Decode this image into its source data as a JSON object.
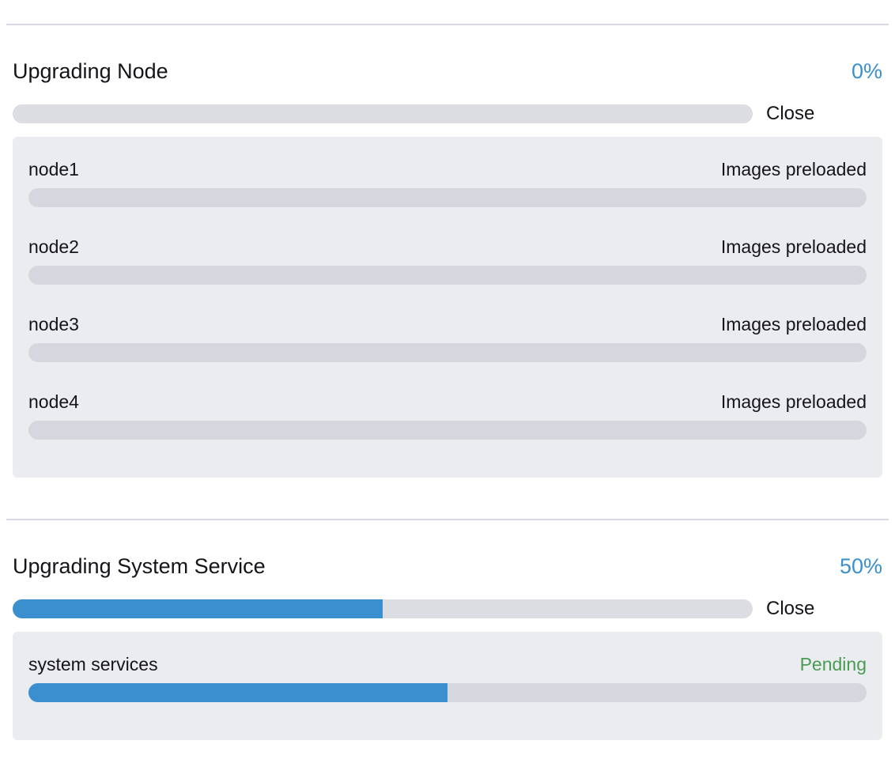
{
  "colors": {
    "accent_blue": "#3a90cf",
    "success_green": "#4a9b52",
    "text_dark": "#141419"
  },
  "sections": [
    {
      "title": "Upgrading Node",
      "percent_label": "0%",
      "percent": 0,
      "close_label": "Close",
      "items": [
        {
          "name": "node1",
          "status": "Images preloaded",
          "status_color": "#141419",
          "percent": 0
        },
        {
          "name": "node2",
          "status": "Images preloaded",
          "status_color": "#141419",
          "percent": 0
        },
        {
          "name": "node3",
          "status": "Images preloaded",
          "status_color": "#141419",
          "percent": 0
        },
        {
          "name": "node4",
          "status": "Images preloaded",
          "status_color": "#141419",
          "percent": 0
        }
      ]
    },
    {
      "title": "Upgrading System Service",
      "percent_label": "50%",
      "percent": 50,
      "close_label": "Close",
      "items": [
        {
          "name": "system services",
          "status": "Pending",
          "status_color": "#4a9b52",
          "percent": 50
        }
      ]
    }
  ]
}
